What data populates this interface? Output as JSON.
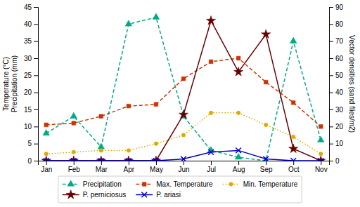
{
  "chart_data": {
    "type": "line",
    "categories": [
      "Jan",
      "Feb",
      "Mar",
      "Apr",
      "May",
      "Jun",
      "Jul",
      "Aug",
      "Sep",
      "Oct",
      "Nov"
    ],
    "ylabel": "Temperature (°C)\nPrecipitation (mm)",
    "y2label": "Vector densities (sand flies/m2)",
    "ylim": [
      0,
      45
    ],
    "yticks": [
      0,
      5,
      10,
      15,
      20,
      25,
      30,
      35,
      40,
      45
    ],
    "y2lim": [
      0,
      90
    ],
    "y2ticks": [
      0,
      10,
      20,
      30,
      40,
      50,
      60,
      70,
      80,
      90
    ],
    "grid": false,
    "legend": "bottom",
    "series": [
      {
        "name": "Precipitation",
        "color": "#00AA88",
        "marker": "triangle",
        "line_style": "dashed",
        "values": [
          8,
          13,
          4,
          40,
          42,
          13,
          3,
          1,
          0,
          35,
          6
        ]
      },
      {
        "name": "Max. Temperature",
        "color": "#CC3300",
        "marker": "square",
        "line_style": "dashed",
        "values": [
          10.5,
          11,
          13,
          16,
          16.5,
          24,
          29,
          30,
          23,
          17,
          10
        ]
      },
      {
        "name": "Min. Temperature",
        "color": "#DDAA00",
        "marker": "circle",
        "line_style": "dotted",
        "values": [
          2,
          2.5,
          3,
          3,
          5,
          7.5,
          14,
          14,
          10.5,
          7,
          2
        ]
      },
      {
        "name": "P. perniciosus",
        "color": "#660000",
        "marker": "star",
        "line_style": "solid",
        "axis": "y2",
        "values": [
          0,
          0,
          0,
          0,
          0,
          27,
          82,
          52,
          74,
          7,
          0
        ]
      },
      {
        "name": "P. ariasi",
        "color": "#0000CC",
        "marker": "x",
        "line_style": "solid",
        "axis": "y2",
        "values": [
          0,
          0,
          0,
          0,
          0,
          1,
          5,
          6,
          1,
          0,
          0
        ]
      }
    ]
  }
}
